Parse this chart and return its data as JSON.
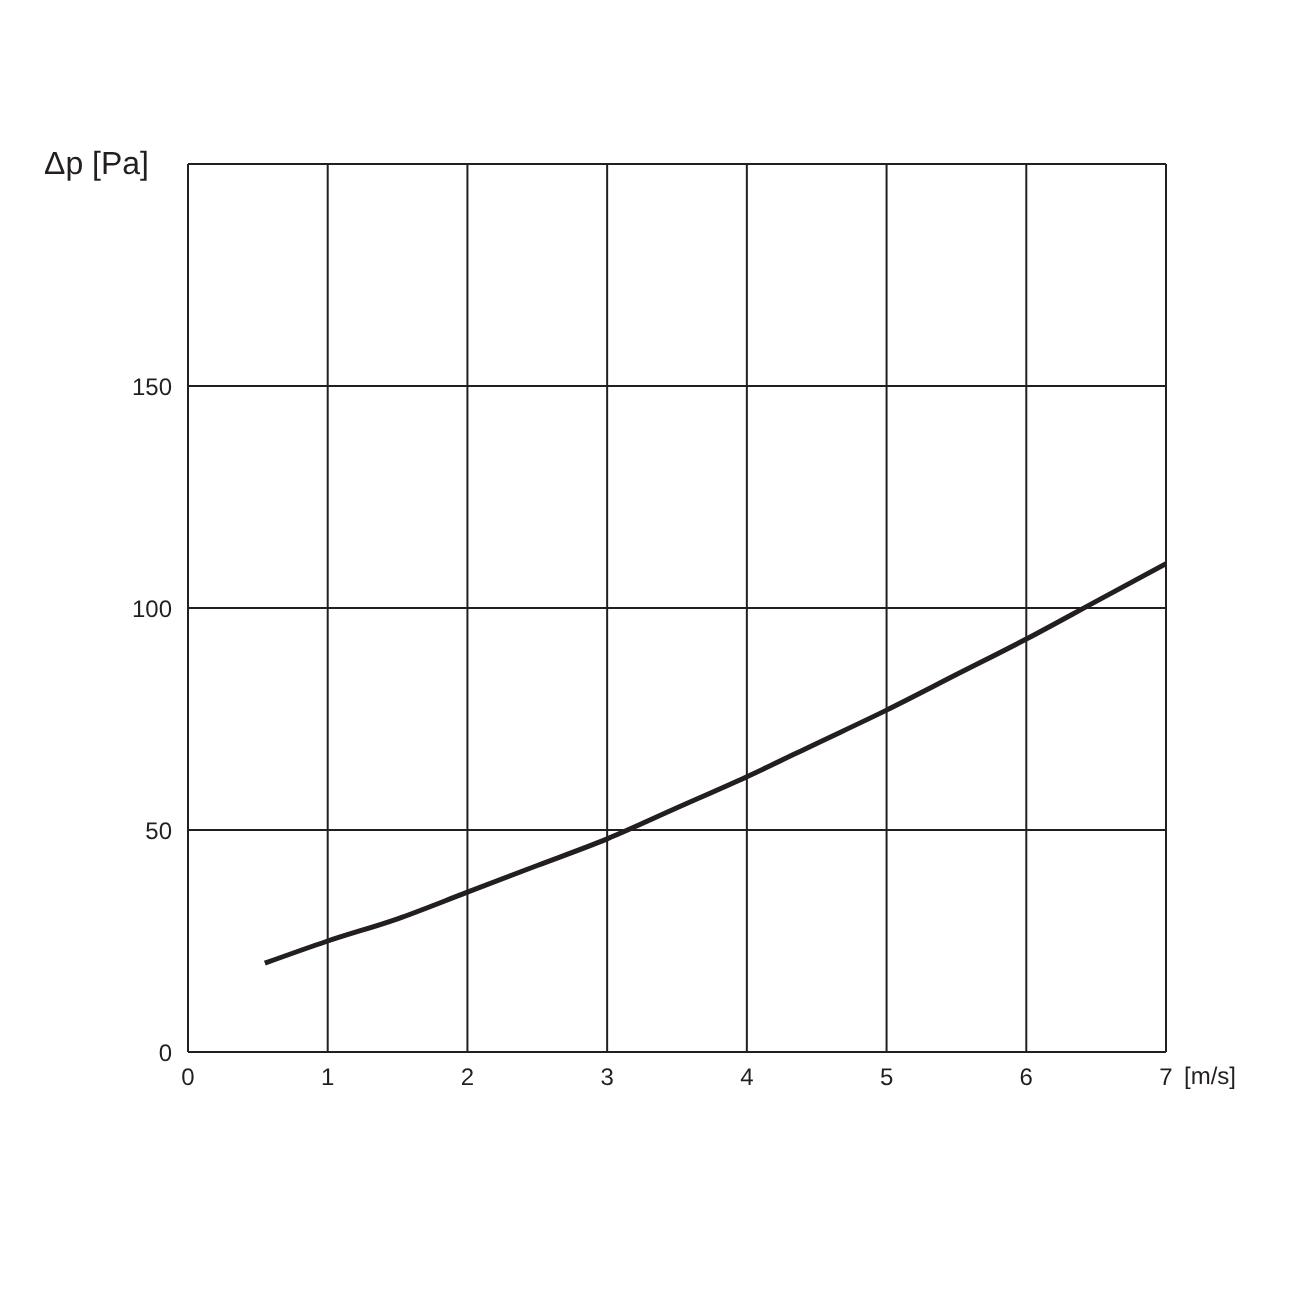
{
  "chart_data": {
    "type": "line",
    "xlabel": "[m/s]",
    "ylabel": "Δp [Pa]",
    "x": [
      0.55,
      1,
      1.5,
      2,
      2.5,
      3,
      3.5,
      4,
      4.5,
      5,
      5.5,
      6,
      6.5,
      7
    ],
    "values": [
      20,
      25,
      30,
      36,
      42,
      48,
      55,
      62,
      69.5,
      77,
      85,
      93,
      101.5,
      110
    ],
    "color": "#231f20",
    "marker": "none",
    "line_style": "solid",
    "xlim": [
      0,
      7
    ],
    "xticks": [
      0,
      1,
      2,
      3,
      4,
      5,
      6,
      7
    ],
    "ylim": [
      0,
      200
    ],
    "yticks": [
      0,
      50,
      100,
      150,
      {
        "value": 200,
        "label": null
      }
    ],
    "grid": true
  }
}
